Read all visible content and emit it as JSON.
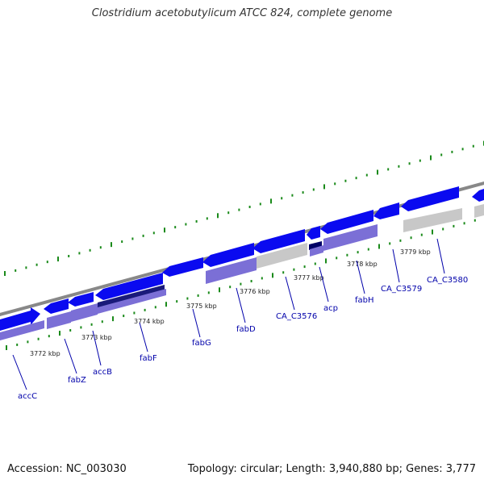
{
  "title": "Clostridium acetobutylicum ATCC 824, complete genome",
  "footer": {
    "accession": "Accession: NC_003030",
    "summary": "Topology: circular; Length: 3,940,880 bp; Genes: 3,777"
  },
  "colors": {
    "gene_fill": "#0a0af0",
    "gene_highlight": "#000066",
    "cds_fill": "#7b6fd6",
    "cds_grey": "#c8c8c8",
    "backbone": "#888888",
    "tick": "#1a8a1a",
    "label": "#0000aa"
  },
  "tick_labels": [
    "3772 kbp",
    "3773 kbp",
    "3774 kbp",
    "3775 kbp",
    "3776 kbp",
    "3777 kbp",
    "3778 kbp",
    "3779 kbp"
  ],
  "genes": [
    "accC",
    "fabZ",
    "accB",
    "fabF",
    "fabG",
    "fabD",
    "CA_C3576",
    "acp",
    "fabH",
    "CA_C3579",
    "CA_C3580"
  ]
}
